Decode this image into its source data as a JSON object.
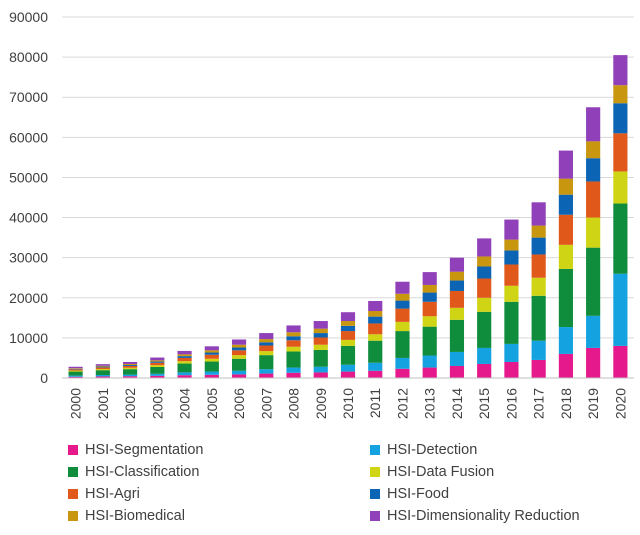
{
  "chart_data": {
    "type": "bar",
    "stacked": true,
    "title": "",
    "xlabel": "",
    "ylabel": "",
    "ylim": [
      0,
      90000
    ],
    "yticks": [
      0,
      10000,
      20000,
      30000,
      40000,
      50000,
      60000,
      70000,
      80000,
      90000
    ],
    "grid": true,
    "legend_position": "bottom",
    "categories": [
      "2000",
      "2001",
      "2002",
      "2003",
      "2004",
      "2005",
      "2006",
      "2007",
      "2008",
      "2009",
      "2010",
      "2011",
      "2012",
      "2013",
      "2014",
      "2015",
      "2016",
      "2017",
      "2018",
      "2019",
      "2020"
    ],
    "series": [
      {
        "name": "HSI-Segmentation",
        "color": "#e6198c",
        "values": [
          300,
          400,
          450,
          550,
          700,
          800,
          900,
          1100,
          1300,
          1400,
          1600,
          1800,
          2300,
          2600,
          3000,
          3500,
          4000,
          4500,
          6000,
          7500,
          8000
        ]
      },
      {
        "name": "HSI-Detection",
        "color": "#15a2e0",
        "values": [
          300,
          350,
          400,
          500,
          700,
          800,
          900,
          1100,
          1300,
          1400,
          1700,
          2000,
          2700,
          3000,
          3500,
          4000,
          4500,
          4800,
          6700,
          8000,
          18000
        ]
      },
      {
        "name": "HSI-Classification",
        "color": "#0f8c3c",
        "values": [
          1000,
          1200,
          1350,
          1700,
          2200,
          2500,
          3000,
          3500,
          4000,
          4200,
          4700,
          5500,
          6700,
          7200,
          8000,
          9000,
          10500,
          11200,
          14500,
          17000,
          17500
        ]
      },
      {
        "name": "HSI-Data Fusion",
        "color": "#cfd414",
        "values": [
          250,
          300,
          350,
          450,
          600,
          700,
          900,
          1000,
          1200,
          1300,
          1500,
          1600,
          2300,
          2600,
          3000,
          3500,
          4000,
          4500,
          6000,
          7500,
          8000
        ]
      },
      {
        "name": "HSI-Agri",
        "color": "#e0581a",
        "values": [
          300,
          400,
          450,
          600,
          800,
          1000,
          1200,
          1400,
          1600,
          1800,
          2200,
          2700,
          3300,
          3600,
          4200,
          4800,
          5300,
          5800,
          7500,
          9000,
          9500
        ]
      },
      {
        "name": "HSI-Food",
        "color": "#0c64b4",
        "values": [
          150,
          200,
          250,
          300,
          450,
          550,
          700,
          800,
          1000,
          1100,
          1300,
          1700,
          2000,
          2300,
          2600,
          3000,
          3500,
          4200,
          5000,
          5800,
          7500
        ]
      },
      {
        "name": "HSI-Biomedical",
        "color": "#c8960f",
        "values": [
          150,
          200,
          250,
          300,
          450,
          550,
          700,
          800,
          1000,
          1100,
          1200,
          1400,
          1700,
          1900,
          2200,
          2500,
          2700,
          3000,
          4000,
          4200,
          4500
        ]
      },
      {
        "name": "HSI-Dimensionality Reduction",
        "color": "#9040b8",
        "values": [
          350,
          400,
          500,
          700,
          850,
          1000,
          1300,
          1500,
          1700,
          1900,
          2200,
          2500,
          3000,
          3200,
          3500,
          4500,
          5000,
          5800,
          7000,
          8500,
          7500
        ]
      }
    ]
  }
}
